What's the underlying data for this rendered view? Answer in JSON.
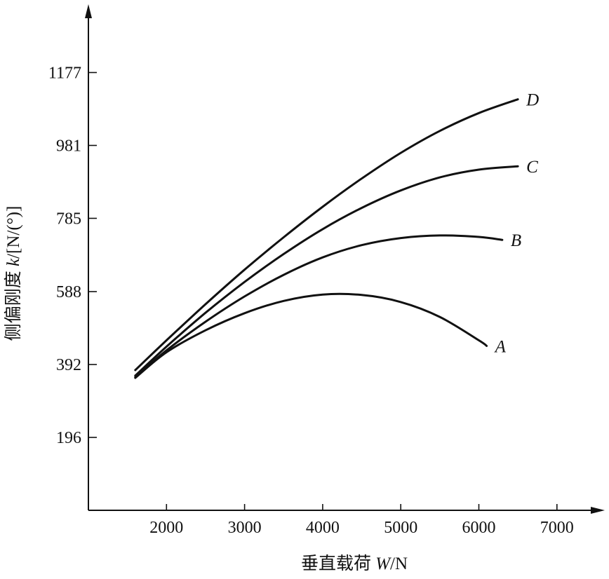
{
  "chart_data": {
    "type": "line",
    "title": "",
    "xlabel": {
      "prefix": "垂直载荷 ",
      "var": "W",
      "unit": "/N"
    },
    "ylabel": {
      "prefix": "侧偏刚度 ",
      "var": "k",
      "unit": "/[N/(°)]"
    },
    "xlim": [
      1000,
      7600
    ],
    "ylim": [
      0,
      1300
    ],
    "x_ticks": [
      2000,
      3000,
      4000,
      5000,
      6000,
      7000
    ],
    "y_ticks": [
      196,
      392,
      588,
      785,
      981,
      1177
    ],
    "grid": false,
    "legend": "none",
    "series": [
      {
        "name": "A",
        "x": [
          1600,
          2000,
          2500,
          3000,
          3500,
          4000,
          4500,
          5000,
          5500,
          6000,
          6100
        ],
        "y": [
          356,
          425,
          484,
          530,
          563,
          580,
          579,
          560,
          520,
          457,
          442
        ]
      },
      {
        "name": "B",
        "x": [
          1600,
          2000,
          2500,
          3000,
          3500,
          4000,
          4500,
          5000,
          5500,
          6000,
          6300
        ],
        "y": [
          358,
          430,
          507,
          575,
          633,
          680,
          713,
          732,
          739,
          735,
          727
        ]
      },
      {
        "name": "C",
        "x": [
          1600,
          2000,
          2500,
          3000,
          3500,
          4000,
          4500,
          5000,
          5500,
          6000,
          6500
        ],
        "y": [
          362,
          440,
          531,
          614,
          689,
          756,
          813,
          860,
          895,
          916,
          925
        ]
      },
      {
        "name": "D",
        "x": [
          1600,
          2000,
          2500,
          3000,
          3500,
          4000,
          4500,
          5000,
          5500,
          6000,
          6500
        ],
        "y": [
          377,
          457,
          554,
          647,
          734,
          816,
          892,
          961,
          1020,
          1068,
          1105
        ]
      }
    ]
  }
}
